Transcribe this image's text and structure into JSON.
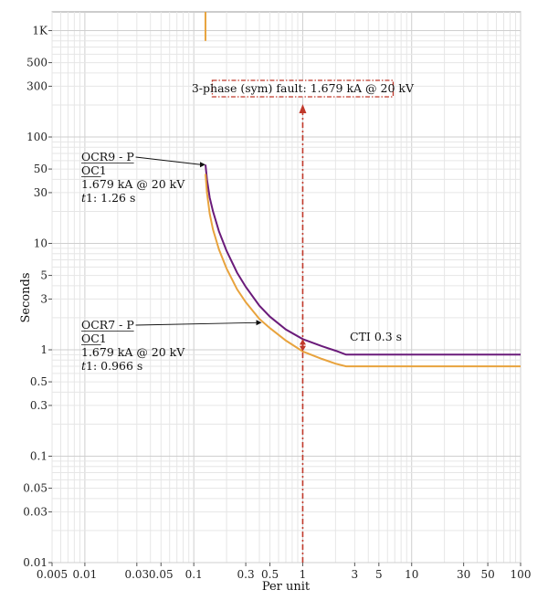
{
  "chart_data": {
    "type": "line",
    "title": "",
    "xlabel": "Per unit",
    "ylabel": "Seconds",
    "xscale": "log",
    "yscale": "log",
    "xlim": [
      0.005,
      100
    ],
    "ylim": [
      0.01,
      1500
    ],
    "grid": true,
    "x_tick_labels": [
      {
        "v": 0.005,
        "label": "0.005"
      },
      {
        "v": 0.01,
        "label": "0.01"
      },
      {
        "v": 0.03,
        "label": "0.03"
      },
      {
        "v": 0.05,
        "label": "0.05"
      },
      {
        "v": 0.1,
        "label": "0.1"
      },
      {
        "v": 0.3,
        "label": "0.3"
      },
      {
        "v": 0.5,
        "label": "0.5"
      },
      {
        "v": 1,
        "label": "1"
      },
      {
        "v": 3,
        "label": "3"
      },
      {
        "v": 5,
        "label": "5"
      },
      {
        "v": 10,
        "label": "10"
      },
      {
        "v": 30,
        "label": "30"
      },
      {
        "v": 50,
        "label": "50"
      },
      {
        "v": 100,
        "label": "100"
      }
    ],
    "y_tick_labels": [
      {
        "v": 1000,
        "label": "1K"
      },
      {
        "v": 500,
        "label": "500"
      },
      {
        "v": 300,
        "label": "300"
      },
      {
        "v": 100,
        "label": "100"
      },
      {
        "v": 50,
        "label": "50"
      },
      {
        "v": 30,
        "label": "30"
      },
      {
        "v": 10,
        "label": "10"
      },
      {
        "v": 5,
        "label": "5"
      },
      {
        "v": 3,
        "label": "3"
      },
      {
        "v": 1,
        "label": "1"
      },
      {
        "v": 0.5,
        "label": "0.5"
      },
      {
        "v": 0.3,
        "label": "0.3"
      },
      {
        "v": 0.1,
        "label": "0.1"
      },
      {
        "v": 0.05,
        "label": "0.05"
      },
      {
        "v": 0.03,
        "label": "0.03"
      },
      {
        "v": 0.01,
        "label": "0.01"
      }
    ],
    "series": [
      {
        "color": "#6a1b7a",
        "x": [
          0.128,
          0.132,
          0.14,
          0.15,
          0.17,
          0.2,
          0.25,
          0.3,
          0.4,
          0.5,
          0.7,
          1.0,
          1.5,
          2.0,
          2.5,
          3.0,
          10,
          50,
          100
        ],
        "y": [
          55,
          40,
          27,
          20,
          13,
          8.5,
          5.3,
          3.9,
          2.6,
          2.05,
          1.55,
          1.26,
          1.08,
          0.98,
          0.9,
          0.9,
          0.9,
          0.9,
          0.9
        ]
      },
      {
        "color": "#e8a33d",
        "x": [
          0.128,
          0.132,
          0.14,
          0.15,
          0.17,
          0.2,
          0.25,
          0.3,
          0.4,
          0.5,
          0.7,
          1.0,
          1.5,
          2.0,
          2.5,
          3.0,
          10,
          50,
          100
        ],
        "y": [
          45,
          30,
          19,
          13.5,
          8.8,
          5.8,
          3.7,
          2.8,
          1.95,
          1.6,
          1.22,
          0.966,
          0.82,
          0.74,
          0.7,
          0.7,
          0.7,
          0.7,
          0.7
        ]
      }
    ],
    "vertical_line_top": {
      "x": 0.128,
      "y_from": 800,
      "y_to": 1500,
      "color": "#e8a33d"
    },
    "fault": {
      "x": 1,
      "label": "3-phase (sym) fault: 1.679 kA @ 20 kV",
      "color": "#c0392b"
    },
    "cti": {
      "label": "CTI 0.3 s",
      "x": 1,
      "y_low": 0.966,
      "y_high": 1.26,
      "color": "#c0392b"
    },
    "annotations": [
      {
        "lines": [
          "OCR9 - P",
          "OC1",
          "1.679 kA @ 20 kV",
          "t1: 1.26 s"
        ],
        "arrow_to": {
          "x": 0.128,
          "y": 55
        }
      },
      {
        "lines": [
          "OCR7 - P",
          "OC1",
          "1.679 kA @ 20 kV",
          "t1: 0.966 s"
        ],
        "arrow_to": {
          "x": 0.42,
          "y": 1.8
        }
      }
    ]
  }
}
